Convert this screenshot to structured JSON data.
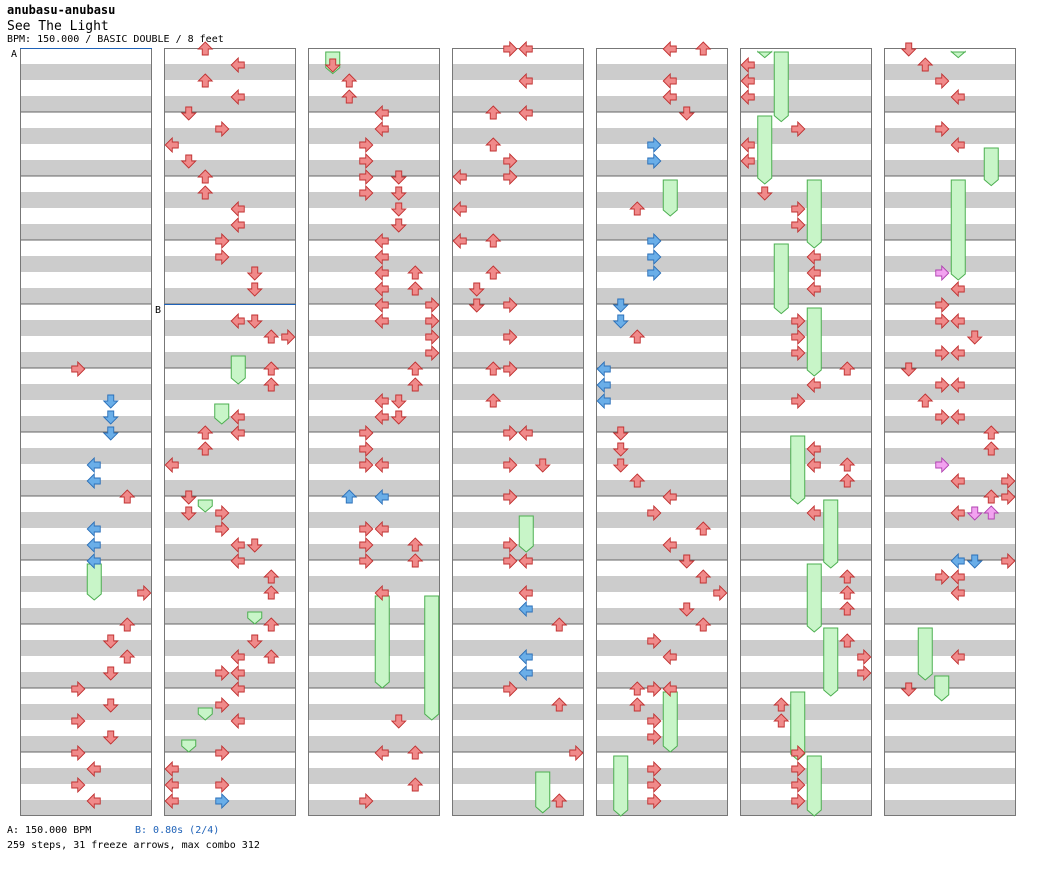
{
  "header": {
    "title": "anubasu-anubasu",
    "subtitle": "See The Light",
    "info": "BPM: 150.000 / BASIC DOUBLE / 8 feet"
  },
  "footer": {
    "bpm_text": "A: 150.000 BPM",
    "stop_text": "B: 0.80s (2/4)",
    "stats_text": "259 steps, 31 freeze arrows, max combo 312"
  },
  "chart": {
    "columns": 7,
    "measures_per_column": 12,
    "lanes": 8,
    "markers": [
      {
        "label": "A",
        "column": 0,
        "beat": 0
      },
      {
        "label": "B",
        "column": 1,
        "beat": 16
      }
    ],
    "colors": {
      "note_red": "#f08a8a",
      "note_blue": "#6aaee8",
      "note_pink": "#f2a2f0",
      "freeze_body": "#c8f5c8",
      "freeze_edge": "#4caf50",
      "stripe_gray": "#cccccc",
      "marker_line": "#1f62b8"
    }
  }
}
